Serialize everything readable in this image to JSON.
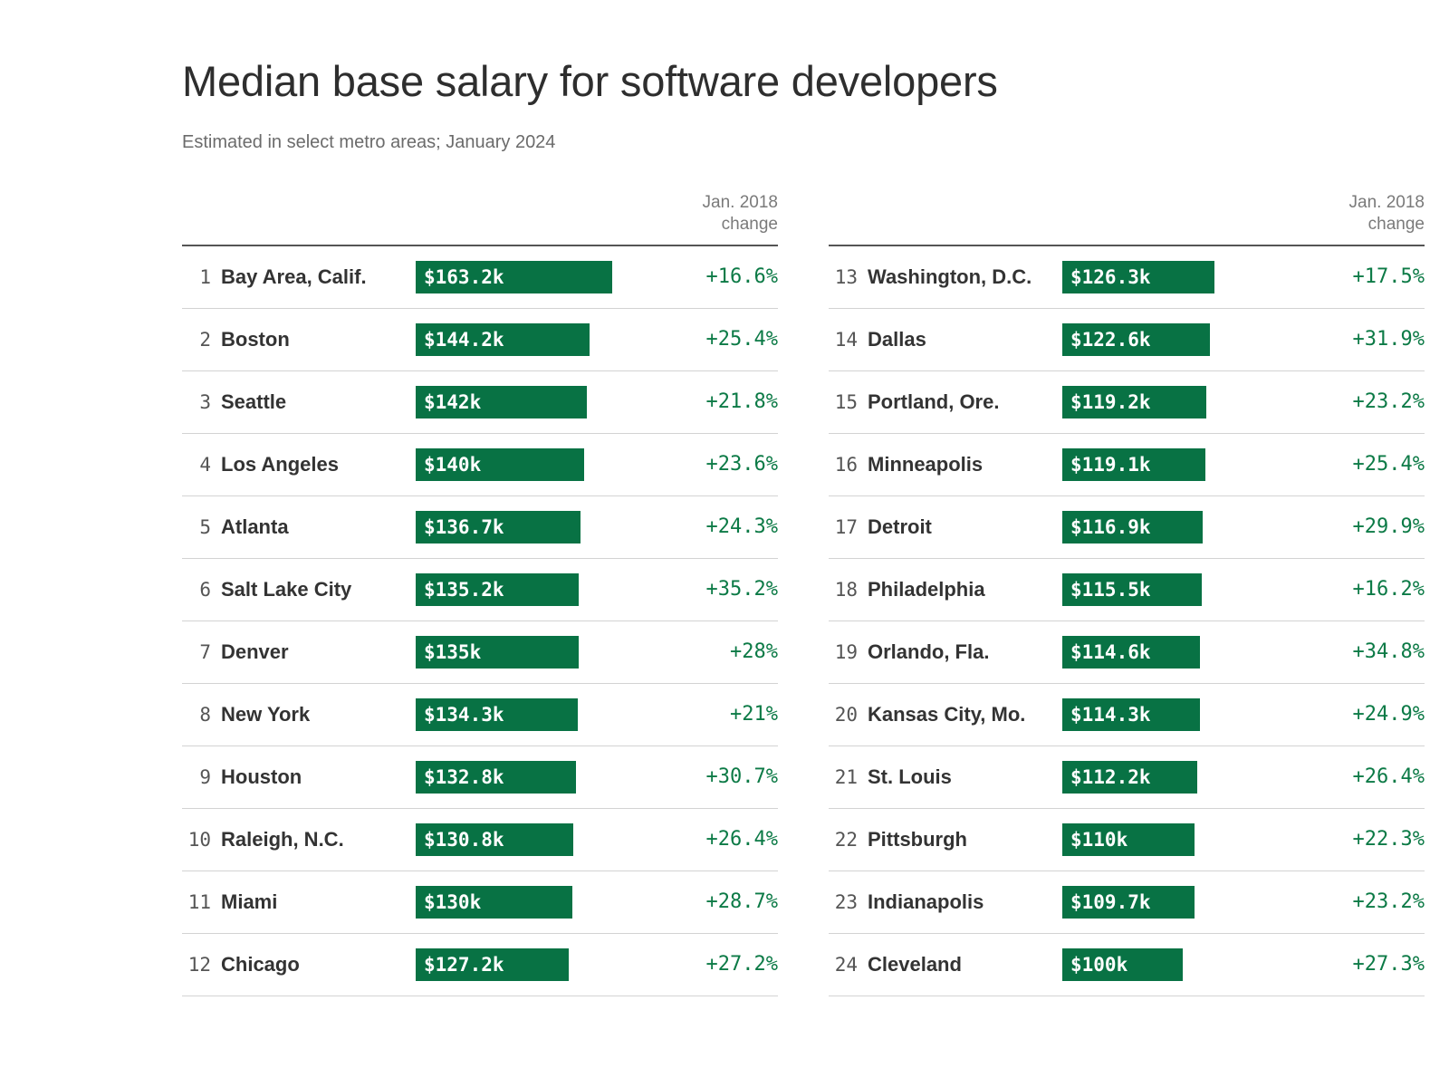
{
  "title": "Median base salary for software developers",
  "subtitle": "Estimated in select metro areas; January 2024",
  "column_header_line1": "Jan. 2018",
  "column_header_line2": "change",
  "colors": {
    "bar": "#087244",
    "change_text": "#0c7a46",
    "rule": "#555555"
  },
  "chart_data": {
    "type": "bar",
    "orientation": "horizontal",
    "title": "Median base salary for software developers",
    "subtitle": "Estimated in select metro areas; January 2024",
    "rows": [
      {
        "rank": "1",
        "city": "Bay Area, Calif.",
        "salary_k": 163.2,
        "label": "$163.2k",
        "change": "+16.6%"
      },
      {
        "rank": "2",
        "city": "Boston",
        "salary_k": 144.2,
        "label": "$144.2k",
        "change": "+25.4%"
      },
      {
        "rank": "3",
        "city": "Seattle",
        "salary_k": 142.0,
        "label": "$142k",
        "change": "+21.8%"
      },
      {
        "rank": "4",
        "city": "Los Angeles",
        "salary_k": 140.0,
        "label": "$140k",
        "change": "+23.6%"
      },
      {
        "rank": "5",
        "city": "Atlanta",
        "salary_k": 136.7,
        "label": "$136.7k",
        "change": "+24.3%"
      },
      {
        "rank": "6",
        "city": "Salt Lake City",
        "salary_k": 135.2,
        "label": "$135.2k",
        "change": "+35.2%"
      },
      {
        "rank": "7",
        "city": "Denver",
        "salary_k": 135.0,
        "label": "$135k",
        "change": "+28%"
      },
      {
        "rank": "8",
        "city": "New York",
        "salary_k": 134.3,
        "label": "$134.3k",
        "change": "+21%"
      },
      {
        "rank": "9",
        "city": "Houston",
        "salary_k": 132.8,
        "label": "$132.8k",
        "change": "+30.7%"
      },
      {
        "rank": "10",
        "city": "Raleigh, N.C.",
        "salary_k": 130.8,
        "label": "$130.8k",
        "change": "+26.4%"
      },
      {
        "rank": "11",
        "city": "Miami",
        "salary_k": 130.0,
        "label": "$130k",
        "change": "+28.7%"
      },
      {
        "rank": "12",
        "city": "Chicago",
        "salary_k": 127.2,
        "label": "$127.2k",
        "change": "+27.2%"
      },
      {
        "rank": "13",
        "city": "Washington, D.C.",
        "salary_k": 126.3,
        "label": "$126.3k",
        "change": "+17.5%"
      },
      {
        "rank": "14",
        "city": "Dallas",
        "salary_k": 122.6,
        "label": "$122.6k",
        "change": "+31.9%"
      },
      {
        "rank": "15",
        "city": "Portland, Ore.",
        "salary_k": 119.2,
        "label": "$119.2k",
        "change": "+23.2%"
      },
      {
        "rank": "16",
        "city": "Minneapolis",
        "salary_k": 119.1,
        "label": "$119.1k",
        "change": "+25.4%"
      },
      {
        "rank": "17",
        "city": "Detroit",
        "salary_k": 116.9,
        "label": "$116.9k",
        "change": "+29.9%"
      },
      {
        "rank": "18",
        "city": "Philadelphia",
        "salary_k": 115.5,
        "label": "$115.5k",
        "change": "+16.2%"
      },
      {
        "rank": "19",
        "city": "Orlando, Fla.",
        "salary_k": 114.6,
        "label": "$114.6k",
        "change": "+34.8%"
      },
      {
        "rank": "20",
        "city": "Kansas City, Mo.",
        "salary_k": 114.3,
        "label": "$114.3k",
        "change": "+24.9%"
      },
      {
        "rank": "21",
        "city": "St. Louis",
        "salary_k": 112.2,
        "label": "$112.2k",
        "change": "+26.4%"
      },
      {
        "rank": "22",
        "city": "Pittsburgh",
        "salary_k": 110.0,
        "label": "$110k",
        "change": "+22.3%"
      },
      {
        "rank": "23",
        "city": "Indianapolis",
        "salary_k": 109.7,
        "label": "$109.7k",
        "change": "+23.2%"
      },
      {
        "rank": "24",
        "city": "Cleveland",
        "salary_k": 100.0,
        "label": "$100k",
        "change": "+27.3%"
      }
    ]
  }
}
